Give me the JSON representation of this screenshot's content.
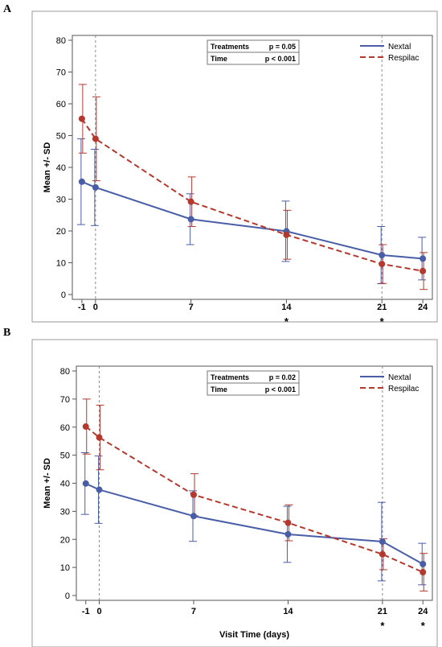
{
  "panels": [
    {
      "letter": "A"
    },
    {
      "letter": "B"
    }
  ],
  "chart_data": [
    {
      "type": "line",
      "title": "",
      "xlabel": "Visit Time (days)",
      "ylabel": "Mean +/- SD",
      "x": [
        -1,
        0,
        7,
        14,
        21,
        24
      ],
      "x_tick_labels": [
        "-1",
        "0",
        "7",
        "14",
        "21",
        "24"
      ],
      "ylim": [
        0,
        80
      ],
      "y_ticks": [
        0,
        10,
        20,
        30,
        40,
        50,
        60,
        70,
        80
      ],
      "significance_marks": [
        "",
        "",
        "",
        "*",
        "*",
        ""
      ],
      "reference_lines_x": [
        0,
        21
      ],
      "grid": false,
      "legend_position": "top-right",
      "stats": [
        {
          "label": "Treatments",
          "p": "p  = 0.05"
        },
        {
          "label": "Time",
          "p": "p  < 0.001"
        }
      ],
      "series": [
        {
          "name": "Nextal",
          "color": "#4a5ea8",
          "style": "solid",
          "values": [
            35.5,
            33.7,
            23.7,
            19.9,
            12.4,
            11.3
          ],
          "sd": [
            13.5,
            12.0,
            8.0,
            9.5,
            9.0,
            6.7
          ]
        },
        {
          "name": "Respilac",
          "color": "#b5382e",
          "style": "dashed",
          "values": [
            55.3,
            49.0,
            29.2,
            18.8,
            9.6,
            7.4
          ],
          "sd": [
            10.8,
            13.2,
            7.8,
            7.7,
            6.1,
            5.8
          ]
        }
      ]
    },
    {
      "type": "line",
      "title": "",
      "xlabel": "Visit Time (days)",
      "ylabel": "Mean +/- SD",
      "x": [
        -1,
        0,
        7,
        14,
        21,
        24
      ],
      "x_tick_labels": [
        "-1",
        "0",
        "7",
        "14",
        "21",
        "24"
      ],
      "ylim": [
        0,
        80
      ],
      "y_ticks": [
        0,
        10,
        20,
        30,
        40,
        50,
        60,
        70,
        80
      ],
      "significance_marks": [
        "",
        "",
        "",
        "",
        "*",
        "*"
      ],
      "reference_lines_x": [
        0,
        21
      ],
      "grid": false,
      "legend_position": "top-right",
      "stats": [
        {
          "label": "Treatments",
          "p": "p  = 0.02"
        },
        {
          "label": "Time",
          "p": "p  < 0.001"
        }
      ],
      "series": [
        {
          "name": "Nextal",
          "color": "#4a5ea8",
          "style": "solid",
          "values": [
            39.9,
            37.7,
            28.3,
            21.8,
            19.2,
            11.2
          ],
          "sd": [
            11.0,
            12.0,
            9.0,
            10.0,
            14.0,
            7.4
          ]
        },
        {
          "name": "Respilac",
          "color": "#b5382e",
          "style": "dashed",
          "values": [
            60.2,
            56.3,
            35.9,
            25.9,
            14.7,
            8.3
          ],
          "sd": [
            9.8,
            11.5,
            7.5,
            6.4,
            5.5,
            6.7
          ]
        }
      ]
    }
  ]
}
